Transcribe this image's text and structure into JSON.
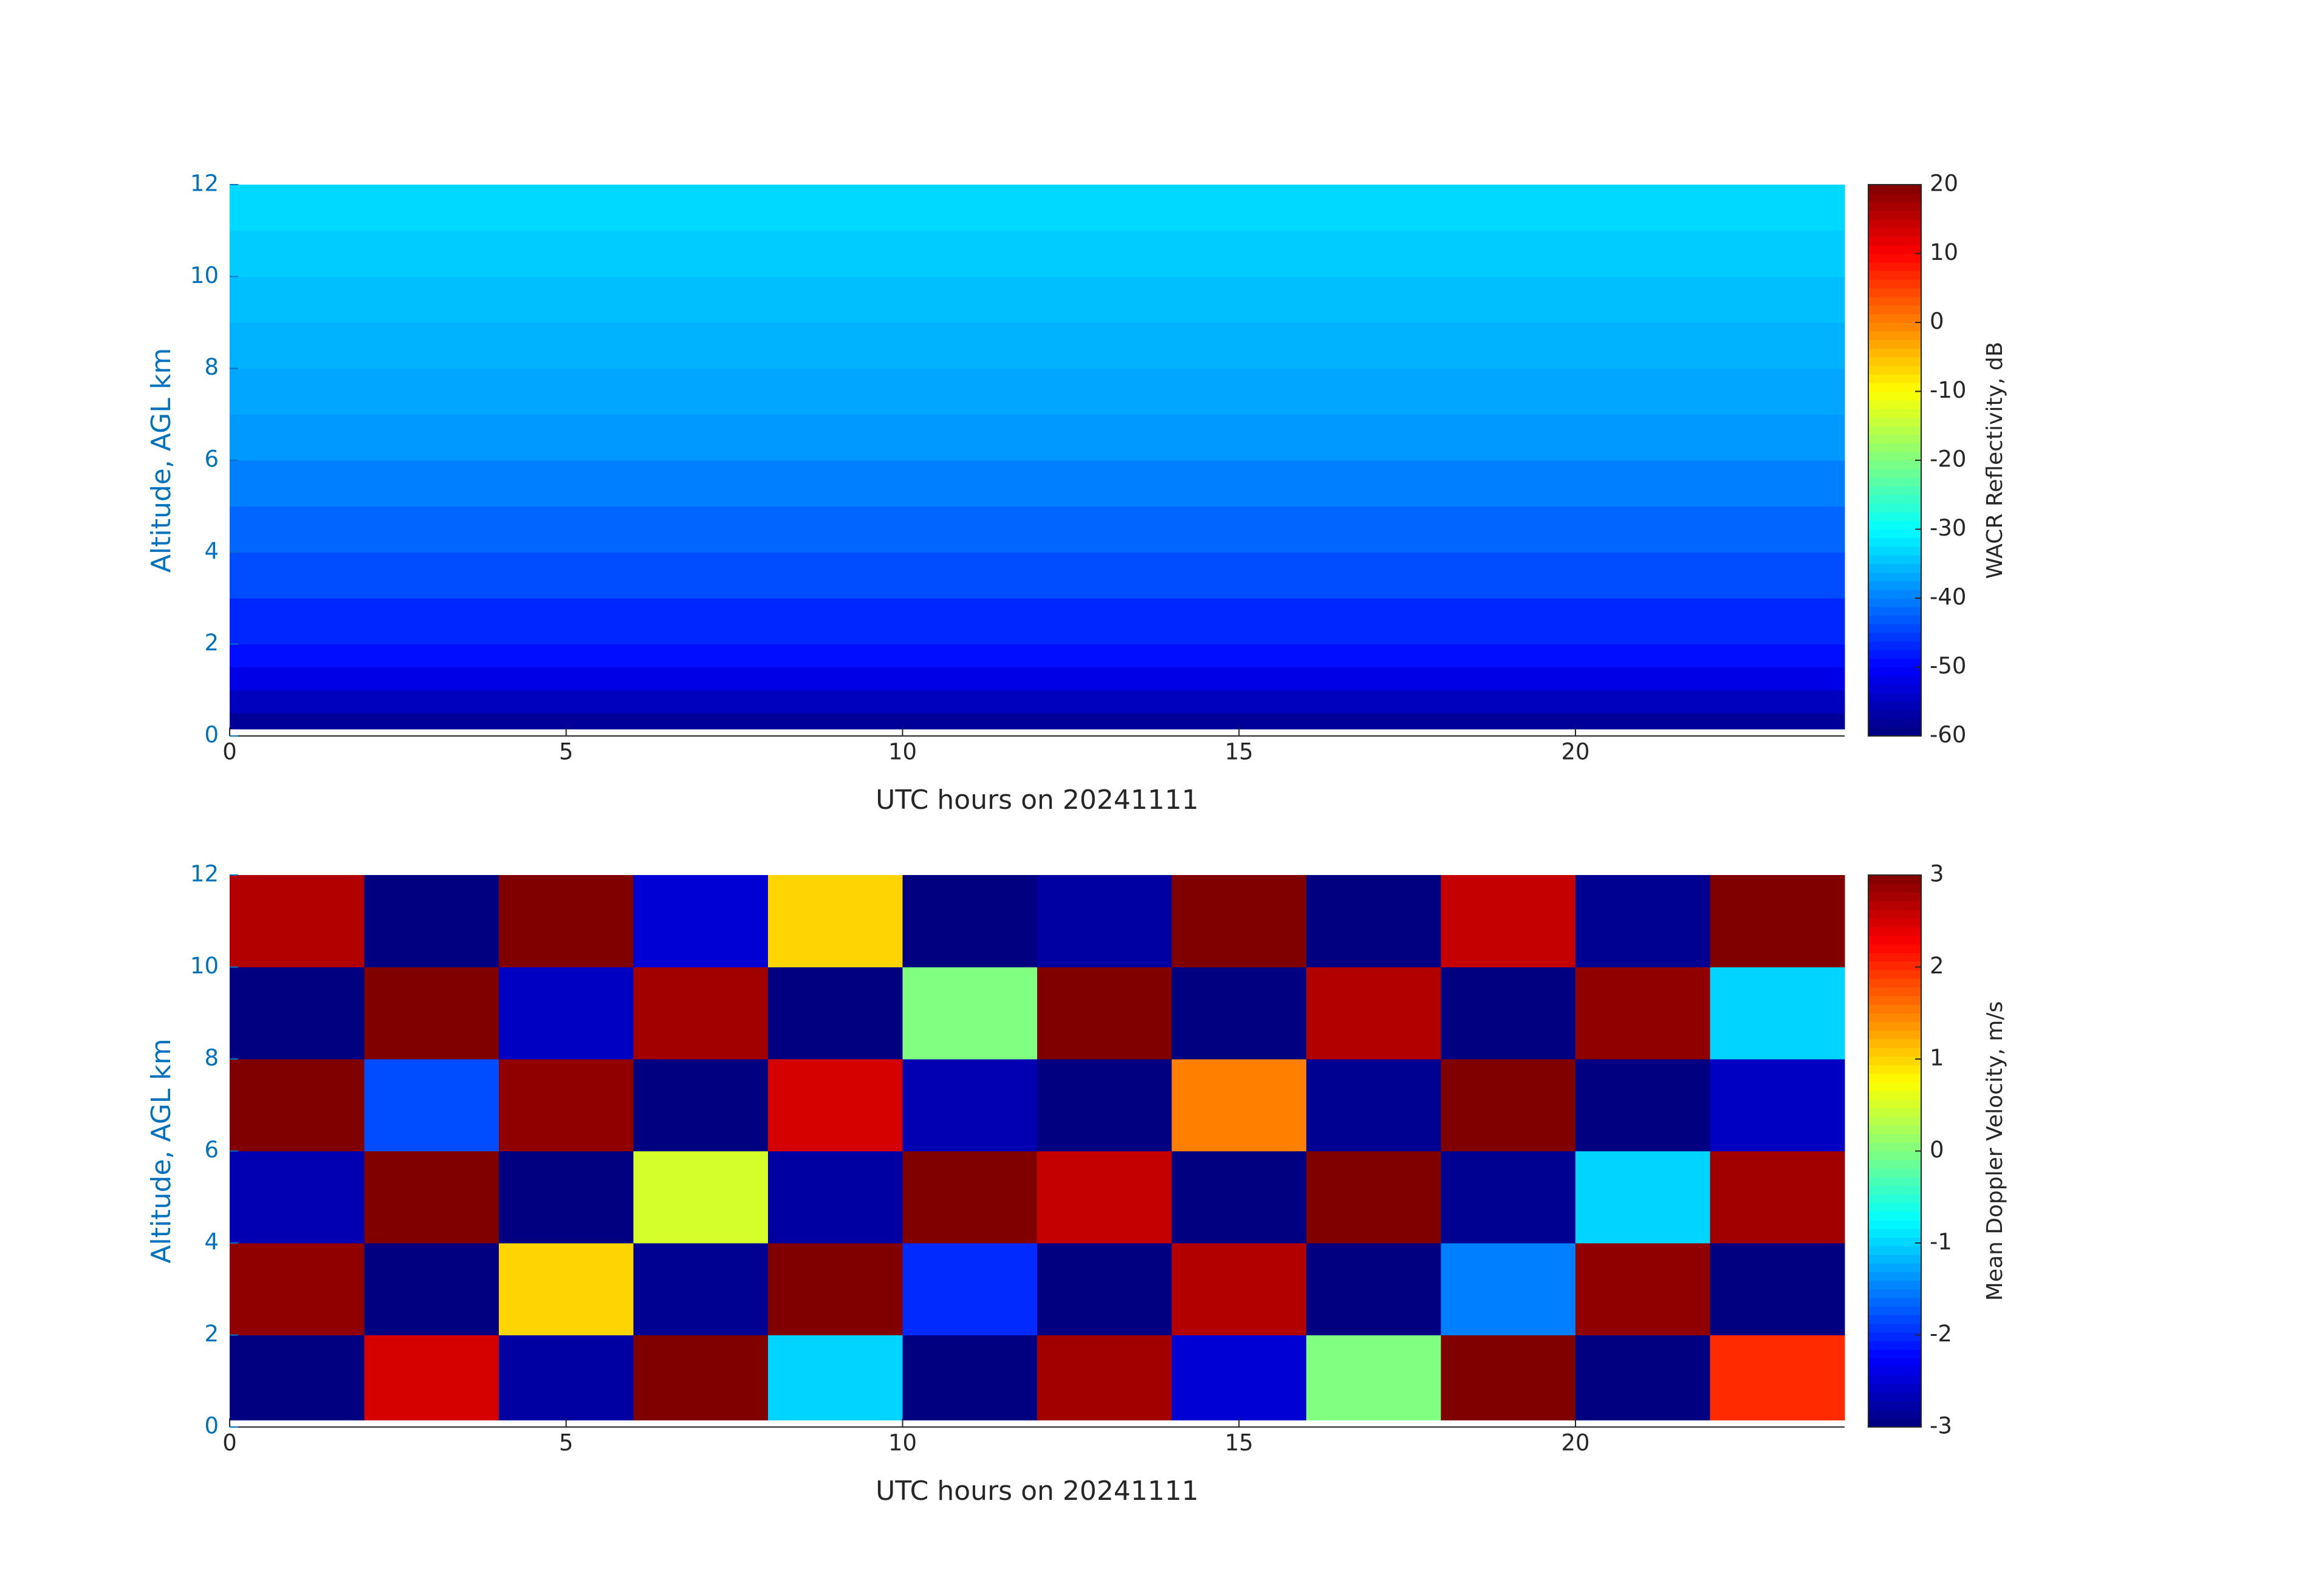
{
  "chart_data": [
    {
      "type": "heatmap",
      "x_label": "UTC hours on 20241111",
      "y_label": "Altitude, AGL km",
      "colorbar_label": "WACR Reflectivity, dB",
      "colormap": "jet",
      "xlim": [
        0,
        24
      ],
      "xticks": [
        0,
        5,
        10,
        15,
        20
      ],
      "ylim": [
        0,
        12
      ],
      "yticks": [
        0,
        2,
        4,
        6,
        8,
        10,
        12
      ],
      "clim": [
        -60,
        20
      ],
      "cticks": [
        -60,
        -50,
        -40,
        -30,
        -20,
        -10,
        0,
        10,
        20
      ],
      "x_edges": [
        0,
        24
      ],
      "y_edges": [
        0.15,
        0.5,
        1,
        1.5,
        2,
        3,
        4,
        5,
        6,
        7,
        8,
        9,
        10,
        11,
        12
      ],
      "z": [
        [
          -58
        ],
        [
          -55
        ],
        [
          -52
        ],
        [
          -49
        ],
        [
          -47
        ],
        [
          -44
        ],
        [
          -42
        ],
        [
          -40
        ],
        [
          -38
        ],
        [
          -37
        ],
        [
          -36
        ],
        [
          -35
        ],
        [
          -34
        ],
        [
          -33
        ]
      ]
    },
    {
      "type": "heatmap",
      "x_label": "UTC hours on 20241111",
      "y_label": "Altitude, AGL km",
      "colorbar_label": "Mean Doppler Velocity, m/s",
      "colormap": "jet",
      "xlim": [
        0,
        24
      ],
      "xticks": [
        0,
        5,
        10,
        15,
        20
      ],
      "ylim": [
        0,
        12
      ],
      "yticks": [
        0,
        2,
        4,
        6,
        8,
        10,
        12
      ],
      "clim": [
        -3,
        3
      ],
      "cticks": [
        -3,
        -2,
        -1,
        0,
        1,
        2,
        3
      ],
      "x_edges": [
        0,
        2,
        4,
        6,
        8,
        10,
        12,
        14,
        16,
        18,
        20,
        22,
        24
      ],
      "y_edges": [
        0.15,
        2,
        4,
        6,
        8,
        10,
        12
      ],
      "z": [
        [
          -3,
          2.5,
          -2.8,
          3,
          -1,
          -3,
          2.8,
          -2.5,
          0,
          3,
          -3,
          2
        ],
        [
          2.9,
          -3,
          1,
          -2.9,
          3,
          -2,
          -3,
          2.7,
          -3,
          -1.5,
          2.9,
          -3
        ],
        [
          -2.7,
          3,
          -3,
          0.5,
          -2.8,
          3,
          2.6,
          -3,
          3,
          -2.9,
          -1,
          2.8
        ],
        [
          3,
          -1.8,
          2.9,
          -3,
          2.5,
          -2.7,
          -3,
          1.5,
          -2.9,
          3,
          -3,
          -2.6
        ],
        [
          -3,
          3,
          -2.6,
          2.8,
          -3,
          0,
          3,
          -3,
          2.7,
          -3,
          2.9,
          -1
        ],
        [
          2.7,
          -3,
          3,
          -2.5,
          1,
          -3,
          -2.8,
          3,
          -3,
          2.6,
          -2.9,
          3
        ]
      ]
    }
  ]
}
